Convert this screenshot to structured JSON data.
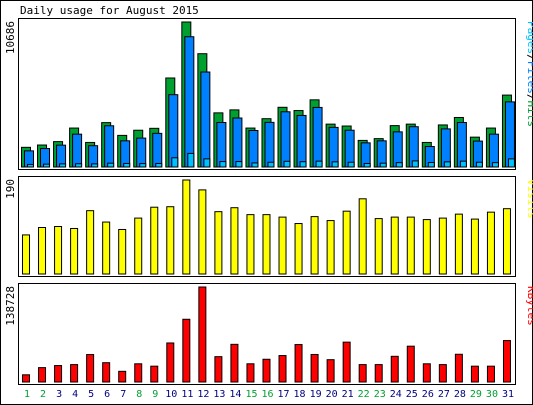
{
  "chart_data": {
    "type": "bar",
    "title": "Daily usage for August 2015",
    "days": [
      "1",
      "2",
      "3",
      "4",
      "5",
      "6",
      "7",
      "8",
      "9",
      "10",
      "11",
      "12",
      "13",
      "14",
      "15",
      "16",
      "17",
      "18",
      "19",
      "20",
      "21",
      "22",
      "23",
      "24",
      "25",
      "26",
      "27",
      "28",
      "29",
      "30",
      "31"
    ],
    "weekend_days": [
      "1",
      "2",
      "8",
      "9",
      "15",
      "16",
      "22",
      "23",
      "29",
      "30"
    ],
    "colors": {
      "hits": "#00a030",
      "files": "#0080ff",
      "pages": "#00c0ff",
      "visits": "#ffff00",
      "kbytes": "#ff0000",
      "weekend_label": "#00a030",
      "weekday_label": "#000080"
    },
    "panels": [
      {
        "id": "hits",
        "ymax_label": "10686",
        "ymax": 10686,
        "legend": [
          {
            "text": "Pages",
            "color": "#00c0ff"
          },
          {
            "text": "/",
            "color": "#000000"
          },
          {
            "text": "Files",
            "color": "#0080ff"
          },
          {
            "text": "/",
            "color": "#000000"
          },
          {
            "text": "Hits",
            "color": "#00a030"
          }
        ],
        "series": [
          {
            "name": "Hits",
            "values": [
              1450,
              1620,
              1870,
              2870,
              1810,
              3270,
              2330,
              2710,
              2850,
              6560,
              10686,
              8350,
              3990,
              4210,
              2870,
              3560,
              4400,
              4160,
              4950,
              3160,
              3020,
              1960,
              2090,
              3050,
              3160,
              1810,
              3100,
              3650,
              2200,
              2870,
              5300
            ]
          },
          {
            "name": "Files",
            "values": [
              1190,
              1360,
              1610,
              2420,
              1570,
              3040,
              1930,
              2130,
              2480,
              5330,
              9600,
              7000,
              3280,
              3610,
              2690,
              3290,
              4070,
              3800,
              4390,
              2920,
              2710,
              1780,
              1930,
              2590,
              2970,
              1510,
              2810,
              3280,
              1910,
              2420,
              4800
            ]
          },
          {
            "name": "Pages",
            "values": [
              190,
              210,
              230,
              240,
              230,
              280,
              260,
              250,
              260,
              680,
              1000,
              600,
              400,
              400,
              300,
              350,
              420,
              390,
              430,
              380,
              350,
              260,
              280,
              320,
              450,
              330,
              380,
              430,
              350,
              320,
              600
            ]
          }
        ]
      },
      {
        "id": "visits",
        "ymax_label": "190",
        "ymax": 190,
        "legend": [
          {
            "text": "Visits",
            "color": "#ffff00"
          }
        ],
        "series": [
          {
            "name": "Visits",
            "values": [
              79,
              94,
              96,
              92,
              128,
              105,
              90,
              113,
              135,
              136,
              190,
              170,
              126,
              134,
              120,
              120,
              115,
              102,
              116,
              108,
              127,
              152,
              112,
              115,
              115,
              110,
              113,
              121,
              111,
              125,
              132
            ]
          }
        ]
      },
      {
        "id": "kbytes",
        "ymax_label": "138728",
        "ymax": 138728,
        "legend": [
          {
            "text": "KBytes",
            "color": "#ff0000"
          }
        ],
        "series": [
          {
            "name": "KBytes",
            "values": [
              10500,
              21000,
              24000,
              25400,
              40100,
              28200,
              15600,
              26600,
              23100,
              57000,
              91600,
              138728,
              37000,
              55000,
              26600,
              33200,
              38600,
              54700,
              40200,
              32600,
              58200,
              25400,
              25400,
              37500,
              52300,
              26600,
              25400,
              40500,
              23100,
              23100,
              60500
            ]
          }
        ]
      }
    ]
  }
}
